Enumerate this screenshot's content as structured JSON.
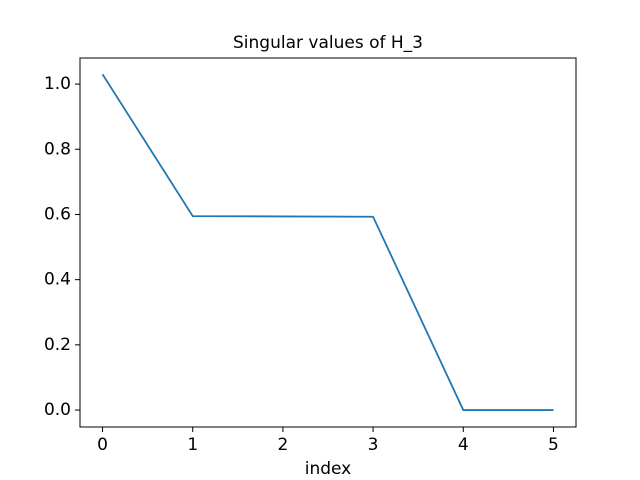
{
  "chart_data": {
    "type": "line",
    "title": "Singular values of H_3",
    "xlabel": "index",
    "x": [
      0,
      1,
      2,
      3,
      4,
      5
    ],
    "series": [
      {
        "color": "#1f77b4",
        "values": [
          1.03,
          0.595,
          0.594,
          0.593,
          0,
          0
        ]
      }
    ],
    "xlim": [
      -0.25,
      5.25
    ],
    "xticks": [
      0,
      1,
      2,
      3,
      4,
      5
    ],
    "ylim": [
      -0.052,
      1.08
    ],
    "yticks": [
      {
        "value": 0,
        "label": "0.0"
      },
      0.2,
      0.4,
      0.6,
      0.8,
      {
        "value": 1,
        "label": "1.0"
      }
    ]
  }
}
